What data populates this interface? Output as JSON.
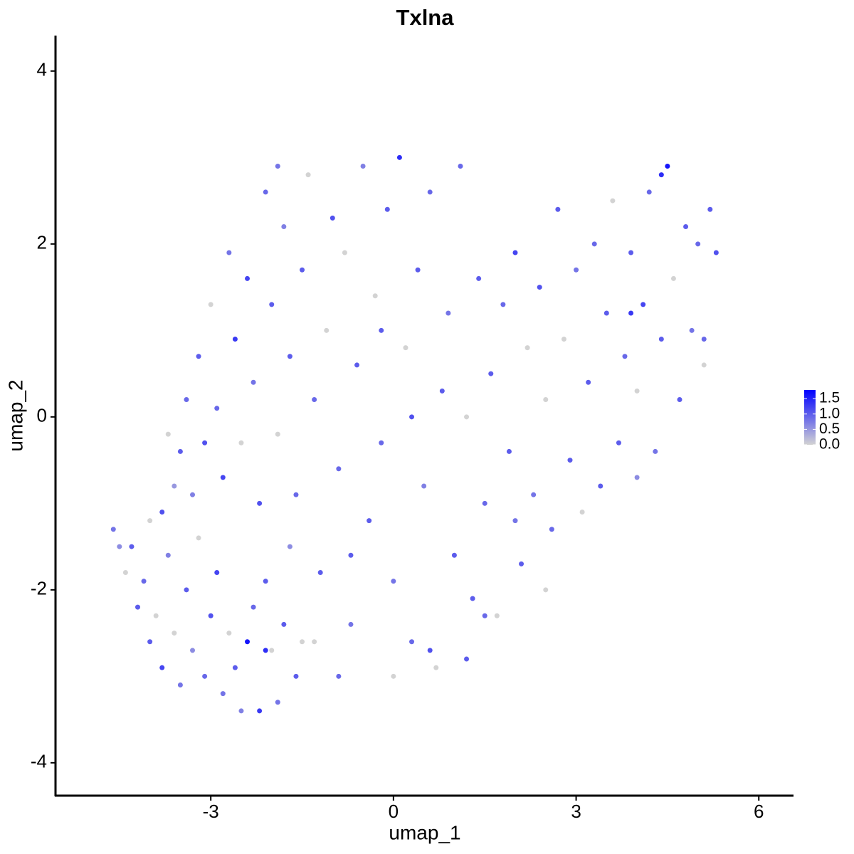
{
  "chart_data": {
    "type": "scatter",
    "title": "Txlna",
    "x_label": "umap_1",
    "y_label": "umap_2",
    "xlim": [
      -5.55,
      6.57
    ],
    "ylim": [
      -4.38,
      4.41
    ],
    "xticks": [
      -3,
      0,
      3,
      6
    ],
    "yticks": [
      -4,
      -2,
      0,
      2,
      4
    ],
    "low_color": "#d3d3d3",
    "high_color": "#0000ff",
    "color_lim": [
      0,
      1.78
    ],
    "color_ticks": [
      {
        "value": 0,
        "label": "0.0"
      },
      {
        "value": 0.5,
        "label": "0.5"
      },
      {
        "value": 1,
        "label": "1.0"
      },
      {
        "value": 1.5,
        "label": "1.5"
      }
    ],
    "x": [
      -4.6,
      -4.5,
      -4.4,
      -4.2,
      -4.1,
      -4.0,
      -3.9,
      -3.8,
      -3.7,
      -3.6,
      -3.5,
      -3.4,
      -3.3,
      -3.2,
      -3.1,
      -3.0,
      -2.9,
      -2.8,
      -2.7,
      -2.6,
      -2.5,
      -2.4,
      -2.3,
      -2.2,
      -2.1,
      -2.0,
      -1.9,
      -1.8,
      -1.7,
      -1.6,
      -1.5,
      -4.3,
      -4.0,
      -3.8,
      -3.6,
      -3.5,
      -3.7,
      -3.4,
      -3.3,
      -3.2,
      -3.1,
      -3.0,
      -2.9,
      -2.8,
      -2.7,
      -2.6,
      -2.5,
      -2.4,
      -2.3,
      -2.2,
      -2.1,
      -2.0,
      -1.9,
      -1.8,
      -1.7,
      -1.6,
      -1.5,
      -1.4,
      -1.3,
      -1.2,
      -1.1,
      -1.0,
      -0.9,
      -0.8,
      -0.7,
      -0.6,
      -0.5,
      -0.4,
      -0.3,
      -0.2,
      -0.1,
      0.0,
      0.1,
      0.2,
      0.3,
      0.4,
      0.5,
      0.6,
      0.7,
      0.8,
      0.9,
      1.0,
      1.1,
      1.2,
      1.3,
      1.4,
      -1.9,
      -0.2,
      0.3,
      -0.7,
      -1.3,
      -0.9,
      0.0,
      -2.1,
      1.5,
      1.6,
      1.7,
      1.8,
      1.9,
      2.0,
      2.1,
      2.2,
      2.3,
      2.4,
      2.5,
      2.6,
      2.7,
      2.8,
      2.9,
      3.0,
      3.1,
      3.2,
      3.3,
      3.4,
      3.5,
      3.6,
      3.7,
      3.8,
      3.9,
      4.0,
      4.1,
      4.2,
      4.3,
      4.4,
      4.5,
      4.6,
      4.7,
      4.8,
      4.9,
      5.0,
      5.1,
      5.2,
      5.3,
      4.4,
      3.9,
      2.5,
      2.0,
      1.2,
      1.5,
      0.6,
      5.1,
      4.0
    ],
    "y": [
      -1.3,
      -1.5,
      -1.8,
      -2.2,
      -1.9,
      -2.6,
      -2.3,
      -2.9,
      -1.6,
      -2.5,
      -3.1,
      -2.0,
      -2.7,
      -1.4,
      -3.0,
      -2.3,
      -1.8,
      -3.2,
      -2.5,
      -2.9,
      -3.4,
      -2.6,
      -2.2,
      -3.4,
      -1.9,
      -2.7,
      -3.3,
      -2.4,
      -1.5,
      -3.0,
      -2.6,
      -1.5,
      -1.2,
      -1.1,
      -0.8,
      -0.4,
      -0.2,
      0.2,
      -0.9,
      0.7,
      -0.3,
      1.3,
      0.1,
      -0.7,
      1.9,
      0.9,
      -0.3,
      1.6,
      0.4,
      -1.0,
      2.6,
      1.3,
      -0.2,
      2.2,
      0.7,
      -0.9,
      1.7,
      2.8,
      0.2,
      -1.8,
      1.0,
      2.3,
      -0.6,
      1.9,
      -2.4,
      0.6,
      2.9,
      -1.2,
      1.4,
      -0.3,
      2.4,
      -1.9,
      3.0,
      0.8,
      -2.6,
      1.7,
      -0.8,
      2.6,
      -2.9,
      0.3,
      1.2,
      -1.6,
      2.9,
      0.0,
      -2.1,
      1.6,
      2.9,
      1.0,
      0.0,
      -1.6,
      -2.6,
      -3.0,
      -3.0,
      -2.7,
      -1.0,
      0.5,
      -2.3,
      1.3,
      -0.4,
      1.9,
      -1.7,
      0.8,
      -0.9,
      1.5,
      0.2,
      -1.3,
      2.4,
      0.9,
      -0.5,
      1.7,
      -1.1,
      0.4,
      2.0,
      -0.8,
      1.2,
      2.5,
      -0.3,
      0.7,
      1.9,
      0.3,
      1.3,
      2.6,
      -0.4,
      0.9,
      2.9,
      1.6,
      0.2,
      2.2,
      1.0,
      2.0,
      0.6,
      2.4,
      1.9,
      2.8,
      1.2,
      -2.0,
      -1.2,
      -2.8,
      -2.3,
      -2.7,
      0.9,
      -0.7
    ],
    "expression": [
      0.8,
      0.6,
      0,
      1.0,
      0.9,
      1.0,
      0,
      1.2,
      0.7,
      0,
      0.8,
      1.0,
      0.6,
      0,
      0.9,
      1.1,
      1.2,
      0.8,
      0,
      1.0,
      0.7,
      1.6,
      0.9,
      1.3,
      1.0,
      0,
      0.8,
      1.0,
      0.6,
      1.0,
      0,
      1.0,
      0,
      1.1,
      0.5,
      1.0,
      0,
      0.9,
      0.7,
      1.0,
      1.1,
      0,
      0.9,
      1.2,
      0.8,
      1.3,
      0,
      1.2,
      0.8,
      1.1,
      0.9,
      1.0,
      0,
      0.7,
      1.0,
      0.9,
      1.0,
      0,
      0.9,
      1.0,
      0,
      1.1,
      0.9,
      0,
      0.8,
      1.0,
      0.7,
      1.0,
      0,
      0.9,
      1.0,
      0.8,
      1.4,
      0,
      0.9,
      1.0,
      0.7,
      0.9,
      0,
      1.0,
      0.8,
      1.0,
      0.9,
      0,
      1.0,
      1.0,
      0.8,
      1.0,
      1.1,
      1.0,
      0,
      0.9,
      0,
      1.4,
      0.9,
      1.0,
      0,
      0.9,
      1.0,
      1.2,
      1.0,
      0,
      0.8,
      1.1,
      0,
      0.9,
      1.0,
      0,
      1.0,
      0.8,
      0,
      1.0,
      0.9,
      1.0,
      1.0,
      0,
      1.0,
      0.9,
      1.0,
      0,
      1.2,
      0.9,
      0.8,
      1.0,
      1.6,
      0,
      1.0,
      1.0,
      0.8,
      0.9,
      0,
      1.0,
      1.1,
      1.4,
      1.3,
      0,
      0.8,
      1.0,
      0.9,
      1.1,
      0.9,
      0.6
    ]
  }
}
